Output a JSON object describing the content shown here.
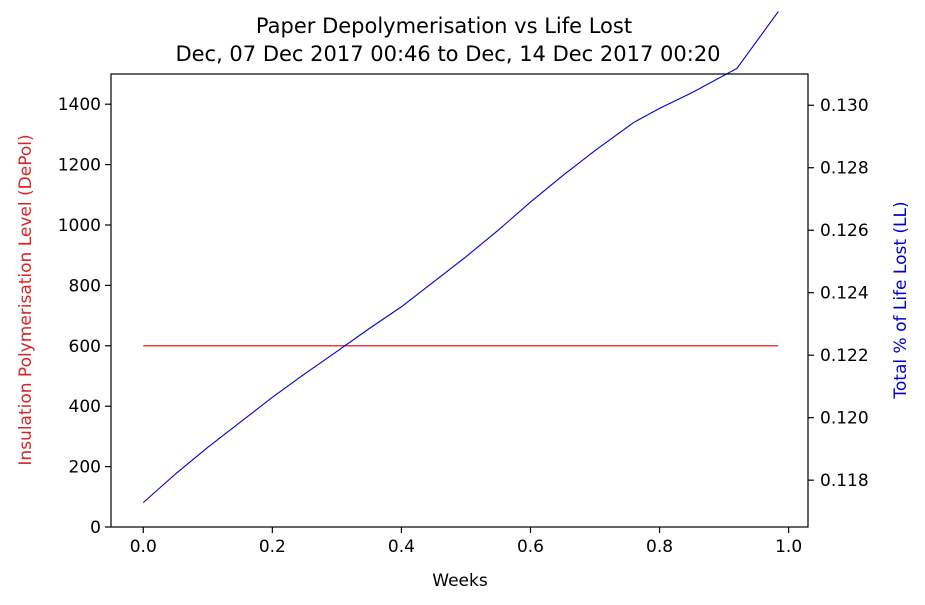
{
  "chart_data": {
    "type": "line",
    "title": "Paper Depolymerisation vs Life Lost",
    "subtitle": "Dec, 07 Dec 2017 00:46 to Dec, 14 Dec 2017 00:20",
    "xlabel": "Weeks",
    "ylabel_left": "Insulation Polymerisation Level (DePol)",
    "ylabel_right": "Total % of Life Lost (LL)",
    "xlim": [
      -0.05,
      1.03
    ],
    "ylim_left": [
      0,
      1500
    ],
    "ylim_right": [
      0.1165,
      0.131
    ],
    "x_ticks": [
      "0.0",
      "0.2",
      "0.4",
      "0.6",
      "0.8",
      "1.0"
    ],
    "y_left_ticks": [
      "0",
      "200",
      "400",
      "600",
      "800",
      "1000",
      "1200",
      "1400"
    ],
    "y_right_ticks": [
      "0.118",
      "0.120",
      "0.122",
      "0.124",
      "0.126",
      "0.128",
      "0.130"
    ],
    "grid": false,
    "colors": {
      "left_axis": "#d62728",
      "right_axis": "#0000cc",
      "depol_line": "#dd0000",
      "ll_line": "#0000cc"
    },
    "series": [
      {
        "axis": "left",
        "x": [
          0.0,
          0.984
        ],
        "values": [
          600,
          600
        ]
      },
      {
        "axis": "right",
        "x": [
          0.0,
          0.05,
          0.1,
          0.15,
          0.2,
          0.25,
          0.3,
          0.35,
          0.4,
          0.45,
          0.5,
          0.55,
          0.6,
          0.65,
          0.7,
          0.76,
          0.8,
          0.85,
          0.92,
          0.984
        ],
        "values": [
          0.11728,
          0.1182,
          0.11905,
          0.11985,
          0.12065,
          0.1214,
          0.12212,
          0.12285,
          0.12355,
          0.12435,
          0.12515,
          0.126,
          0.1269,
          0.12775,
          0.12855,
          0.12945,
          0.1299,
          0.1304,
          0.13118,
          0.133
        ]
      }
    ]
  }
}
